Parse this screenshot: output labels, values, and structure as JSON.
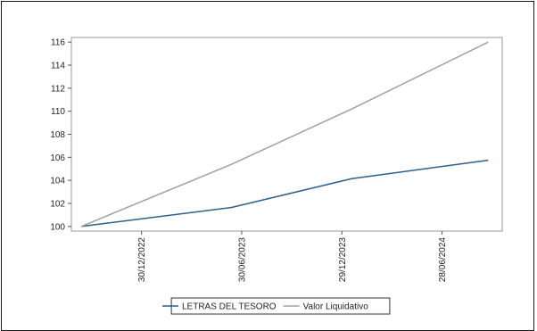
{
  "chart_data": {
    "type": "line",
    "title": "",
    "xlabel": "",
    "ylabel": "",
    "ylim": [
      99.6,
      116.4
    ],
    "yticks": [
      100,
      102,
      104,
      106,
      108,
      110,
      112,
      114,
      116
    ],
    "xticks": [
      {
        "label": "30/12/2022",
        "value": 0.3
      },
      {
        "label": "30/06/2023",
        "value": 0.8
      },
      {
        "label": "29/12/2023",
        "value": 1.3
      },
      {
        "label": "28/06/2024",
        "value": 1.8
      }
    ],
    "xlim": [
      -0.05,
      2.1
    ],
    "series": [
      {
        "name": "LETRAS DEL TESORO",
        "color": "#2e5f8a",
        "points": [
          [
            0.0,
            100.0
          ],
          [
            0.75,
            101.65
          ],
          [
            1.35,
            104.15
          ],
          [
            2.03,
            105.75
          ]
        ]
      },
      {
        "name": "Valor Liquidativo",
        "color": "#a0a0a0",
        "points": [
          [
            0.0,
            100.0
          ],
          [
            0.75,
            105.4
          ],
          [
            1.35,
            110.2
          ],
          [
            2.03,
            116.0
          ]
        ]
      }
    ],
    "legend_position": "bottom",
    "grid": false
  }
}
